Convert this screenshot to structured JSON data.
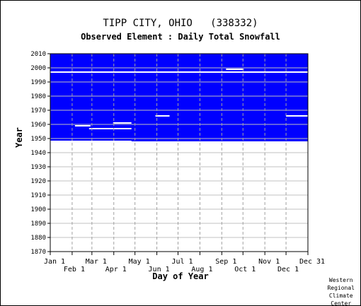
{
  "chart_data": {
    "type": "heatmap",
    "title": "TIPP CITY, OHIO   (338332)",
    "subtitle": "Observed Element : Daily Total Snowfall",
    "xlabel": "Day of Year",
    "ylabel": "Year",
    "ylim": [
      1870,
      2010
    ],
    "y_ticks": [
      "2010",
      "2000",
      "1990",
      "1980",
      "1970",
      "1960",
      "1950",
      "1940",
      "1930",
      "1920",
      "1910",
      "1900",
      "1890",
      "1880",
      "1870"
    ],
    "x_ticks_upper": [
      "Jan 1",
      "Mar 1",
      "May 1",
      "Jul 1",
      "Sep 1",
      "Nov 1",
      "Dec 31"
    ],
    "x_ticks_lower": [
      "Feb 1",
      "Apr 1",
      "Jun 1",
      "Aug 1",
      "Oct 1",
      "Dec 1"
    ],
    "data_color": "#0000ff",
    "missing_color": "#ffffff",
    "grid": true,
    "record_start_year": 1948,
    "record_end_year": 2010,
    "missing_segments": [
      {
        "year": 1997,
        "start_day": 1,
        "end_day": 366
      },
      {
        "year": 1999,
        "start_day": 250,
        "end_day": 275
      },
      {
        "year": 1997,
        "start_day": 36,
        "end_day": 90
      },
      {
        "year": 1966,
        "start_day": 150,
        "end_day": 170
      },
      {
        "year": 1966,
        "start_day": 335,
        "end_day": 366
      },
      {
        "year": 1961,
        "start_day": 90,
        "end_day": 116
      },
      {
        "year": 1959,
        "start_day": 36,
        "end_day": 58
      },
      {
        "year": 1957,
        "start_day": 56,
        "end_day": 116
      },
      {
        "year": 1948,
        "start_day": 1,
        "end_day": 116
      }
    ]
  },
  "credit": [
    "Western",
    "Regional",
    "Climate",
    "Center"
  ]
}
